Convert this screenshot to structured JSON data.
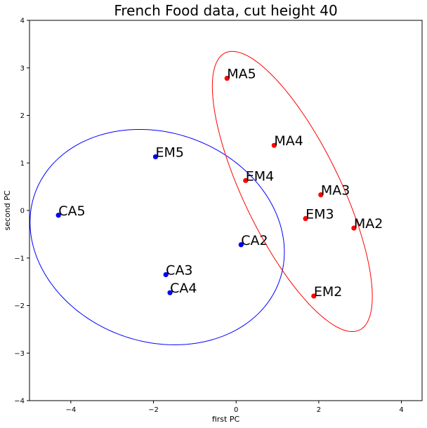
{
  "chart_data": {
    "type": "scatter",
    "title": "French Food data, cut height 40",
    "xlabel": "first PC",
    "ylabel": "second PC",
    "xlim": [
      -5,
      4.5
    ],
    "ylim": [
      -4,
      4
    ],
    "xticks": [
      -4,
      -2,
      0,
      2,
      4
    ],
    "yticks": [
      -4,
      -3,
      -2,
      -1,
      0,
      1,
      2,
      3,
      4
    ],
    "grid": false,
    "series": [
      {
        "color": "#0000ff",
        "points": [
          {
            "label": "EM5",
            "x": -1.95,
            "y": 1.13
          },
          {
            "label": "CA5",
            "x": -4.3,
            "y": -0.1
          },
          {
            "label": "CA2",
            "x": 0.12,
            "y": -0.72
          },
          {
            "label": "CA3",
            "x": -1.7,
            "y": -1.35
          },
          {
            "label": "CA4",
            "x": -1.6,
            "y": -1.73
          }
        ],
        "ellipse": {
          "cx": -1.91,
          "cy": -0.56,
          "rx": 3.11,
          "ry": 2.22,
          "angle_deg": -12
        }
      },
      {
        "color": "#ff0000",
        "points": [
          {
            "label": "MA5",
            "x": -0.22,
            "y": 2.78
          },
          {
            "label": "MA4",
            "x": 0.92,
            "y": 1.37
          },
          {
            "label": "EM4",
            "x": 0.23,
            "y": 0.63
          },
          {
            "label": "MA3",
            "x": 2.05,
            "y": 0.33
          },
          {
            "label": "EM3",
            "x": 1.68,
            "y": -0.17
          },
          {
            "label": "MA2",
            "x": 2.85,
            "y": -0.37
          },
          {
            "label": "EM2",
            "x": 1.88,
            "y": -1.8
          }
        ],
        "ellipse": {
          "cx": 1.36,
          "cy": 0.4,
          "rx": 3.34,
          "ry": 1.13,
          "angle_deg": -60
        }
      }
    ]
  }
}
